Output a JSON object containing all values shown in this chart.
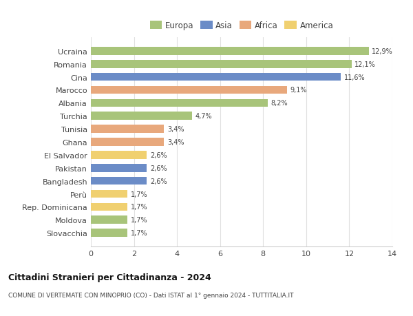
{
  "title": "Cittadini Stranieri per Cittadinanza - 2024",
  "subtitle": "COMUNE DI VERTEMATE CON MINOPRIO (CO) - Dati ISTAT al 1° gennaio 2024 - TUTTITALIA.IT",
  "categories": [
    "Ucraina",
    "Romania",
    "Cina",
    "Marocco",
    "Albania",
    "Turchia",
    "Tunisia",
    "Ghana",
    "El Salvador",
    "Pakistan",
    "Bangladesh",
    "Perù",
    "Rep. Dominicana",
    "Moldova",
    "Slovacchia"
  ],
  "values": [
    12.9,
    12.1,
    11.6,
    9.1,
    8.2,
    4.7,
    3.4,
    3.4,
    2.6,
    2.6,
    2.6,
    1.7,
    1.7,
    1.7,
    1.7
  ],
  "labels": [
    "12,9%",
    "12,1%",
    "11,6%",
    "9,1%",
    "8,2%",
    "4,7%",
    "3,4%",
    "3,4%",
    "2,6%",
    "2,6%",
    "2,6%",
    "1,7%",
    "1,7%",
    "1,7%",
    "1,7%"
  ],
  "colors": [
    "#a8c47a",
    "#a8c47a",
    "#6b8cc7",
    "#e8a87c",
    "#a8c47a",
    "#a8c47a",
    "#e8a87c",
    "#e8a87c",
    "#f0d070",
    "#6b8cc7",
    "#6b8cc7",
    "#f0d070",
    "#f0d070",
    "#a8c47a",
    "#a8c47a"
  ],
  "legend": [
    {
      "label": "Europa",
      "color": "#a8c47a"
    },
    {
      "label": "Asia",
      "color": "#6b8cc7"
    },
    {
      "label": "Africa",
      "color": "#e8a87c"
    },
    {
      "label": "America",
      "color": "#f0d070"
    }
  ],
  "xlim": [
    0,
    14
  ],
  "xticks": [
    0,
    2,
    4,
    6,
    8,
    10,
    12,
    14
  ],
  "background_color": "#ffffff",
  "grid_color": "#e0e0e0",
  "bar_height": 0.62
}
